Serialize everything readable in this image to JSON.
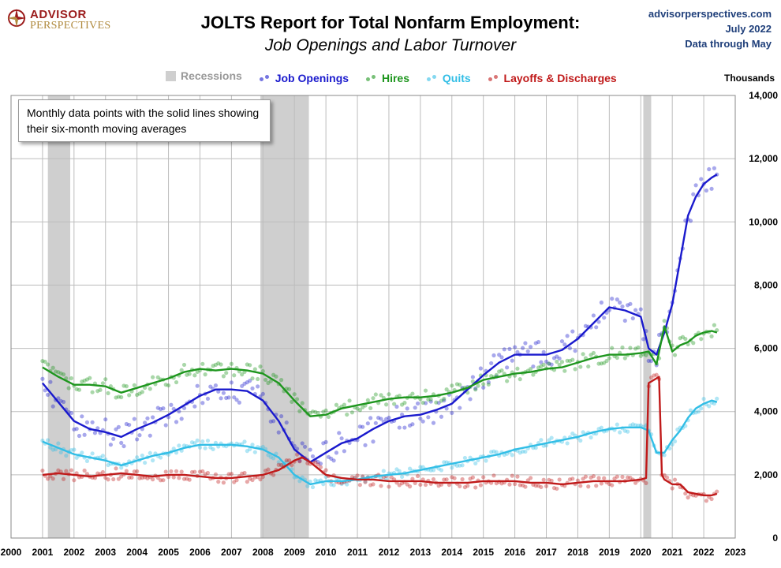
{
  "branding": {
    "logo_line1": "ADVISOR",
    "logo_line2": "PERSPECTIVES",
    "logo_color": "#9b1b1b",
    "website": "advisorperspectives.com",
    "date": "July 2022",
    "data_through": "Data through May"
  },
  "chart_data": {
    "type": "line",
    "title": "JOLTS Report for Total Nonfarm Employment:",
    "subtitle": "Job Openings and Labor Turnover",
    "ylabel": "Thousands",
    "annotation": "Monthly data points with the solid lines showing their six-month moving averages",
    "xlim": [
      2000,
      2023
    ],
    "ylim": [
      0,
      14000
    ],
    "x_ticks": [
      "2000",
      "2001",
      "2002",
      "2003",
      "2004",
      "2005",
      "2006",
      "2007",
      "2008",
      "2009",
      "2010",
      "2011",
      "2012",
      "2013",
      "2014",
      "2015",
      "2016",
      "2017",
      "2018",
      "2019",
      "2020",
      "2021",
      "2022",
      "2023"
    ],
    "y_ticks": [
      "0",
      "2,000",
      "4,000",
      "6,000",
      "8,000",
      "10,000",
      "12,000",
      "14,000"
    ],
    "grid": true,
    "legend_position": "top",
    "recessions": {
      "name": "Recessions",
      "color": "#cfcfcf",
      "periods": [
        [
          2001.17,
          2001.88
        ],
        [
          2007.92,
          2009.46
        ],
        [
          2020.08,
          2020.33
        ]
      ]
    },
    "series": [
      {
        "name": "Job Openings",
        "color": "#1a1acd",
        "x": [
          2001.0,
          2001.5,
          2002.0,
          2002.5,
          2003.0,
          2003.5,
          2004.0,
          2004.5,
          2005.0,
          2005.5,
          2006.0,
          2006.5,
          2007.0,
          2007.5,
          2008.0,
          2008.5,
          2009.0,
          2009.5,
          2010.0,
          2010.5,
          2011.0,
          2011.5,
          2012.0,
          2012.5,
          2013.0,
          2013.5,
          2014.0,
          2014.5,
          2015.0,
          2015.5,
          2016.0,
          2016.5,
          2017.0,
          2017.5,
          2018.0,
          2018.5,
          2019.0,
          2019.5,
          2020.0,
          2020.25,
          2020.5,
          2020.75,
          2021.0,
          2021.25,
          2021.5,
          2021.75,
          2022.0,
          2022.25,
          2022.42
        ],
        "values": [
          4900,
          4300,
          3700,
          3450,
          3350,
          3200,
          3450,
          3650,
          3900,
          4200,
          4500,
          4700,
          4700,
          4650,
          4350,
          3700,
          2800,
          2400,
          2700,
          3000,
          3150,
          3450,
          3700,
          3850,
          3900,
          4050,
          4250,
          4700,
          5150,
          5550,
          5800,
          5800,
          5800,
          5950,
          6300,
          6800,
          7300,
          7200,
          7000,
          6000,
          5800,
          6500,
          7400,
          8800,
          10200,
          10800,
          11200,
          11400,
          11500
        ]
      },
      {
        "name": "Hires",
        "color": "#1e961e",
        "x": [
          2001.0,
          2001.5,
          2002.0,
          2002.5,
          2003.0,
          2003.5,
          2004.0,
          2004.5,
          2005.0,
          2005.5,
          2006.0,
          2006.5,
          2007.0,
          2007.5,
          2008.0,
          2008.5,
          2009.0,
          2009.5,
          2010.0,
          2010.5,
          2011.0,
          2011.5,
          2012.0,
          2012.5,
          2013.0,
          2013.5,
          2014.0,
          2014.5,
          2015.0,
          2015.5,
          2016.0,
          2016.5,
          2017.0,
          2017.5,
          2018.0,
          2018.5,
          2019.0,
          2019.5,
          2020.0,
          2020.25,
          2020.5,
          2020.75,
          2021.0,
          2021.25,
          2021.5,
          2021.75,
          2022.0,
          2022.25,
          2022.42
        ],
        "values": [
          5400,
          5100,
          4850,
          4850,
          4800,
          4600,
          4750,
          4900,
          5050,
          5250,
          5350,
          5300,
          5350,
          5300,
          5200,
          4900,
          4350,
          3850,
          3900,
          4100,
          4200,
          4300,
          4400,
          4450,
          4450,
          4500,
          4600,
          4750,
          5000,
          5100,
          5200,
          5250,
          5350,
          5400,
          5550,
          5700,
          5800,
          5800,
          5850,
          5900,
          5500,
          6700,
          5900,
          6100,
          6200,
          6400,
          6500,
          6550,
          6500
        ]
      },
      {
        "name": "Quits",
        "color": "#32bee6",
        "x": [
          2001.0,
          2001.5,
          2002.0,
          2002.5,
          2003.0,
          2003.5,
          2004.0,
          2004.5,
          2005.0,
          2005.5,
          2006.0,
          2006.5,
          2007.0,
          2007.5,
          2008.0,
          2008.5,
          2009.0,
          2009.5,
          2010.0,
          2010.5,
          2011.0,
          2011.5,
          2012.0,
          2012.5,
          2013.0,
          2013.5,
          2014.0,
          2014.5,
          2015.0,
          2015.5,
          2016.0,
          2016.5,
          2017.0,
          2017.5,
          2018.0,
          2018.5,
          2019.0,
          2019.5,
          2020.0,
          2020.25,
          2020.5,
          2020.75,
          2021.0,
          2021.25,
          2021.5,
          2021.75,
          2022.0,
          2022.25,
          2022.42
        ],
        "values": [
          3050,
          2850,
          2650,
          2550,
          2450,
          2300,
          2450,
          2600,
          2700,
          2850,
          2950,
          2950,
          2950,
          2900,
          2800,
          2550,
          2000,
          1700,
          1800,
          1800,
          1850,
          1950,
          2000,
          2050,
          2150,
          2250,
          2350,
          2450,
          2550,
          2650,
          2800,
          2900,
          3000,
          3100,
          3200,
          3350,
          3450,
          3500,
          3500,
          3400,
          2700,
          2700,
          3100,
          3400,
          3800,
          4100,
          4250,
          4350,
          4300
        ]
      },
      {
        "name": "Layoffs & Discharges",
        "color": "#c01a1a",
        "x": [
          2001.0,
          2001.5,
          2002.0,
          2002.5,
          2003.0,
          2003.5,
          2004.0,
          2004.5,
          2005.0,
          2005.5,
          2006.0,
          2006.5,
          2007.0,
          2007.5,
          2008.0,
          2008.5,
          2009.0,
          2009.25,
          2009.5,
          2010.0,
          2010.5,
          2011.0,
          2011.5,
          2012.0,
          2012.5,
          2013.0,
          2013.5,
          2014.0,
          2014.5,
          2015.0,
          2015.5,
          2016.0,
          2016.5,
          2017.0,
          2017.5,
          2018.0,
          2018.5,
          2019.0,
          2019.5,
          2020.0,
          2020.17,
          2020.25,
          2020.58,
          2020.67,
          2020.75,
          2021.0,
          2021.25,
          2021.5,
          2021.75,
          2022.0,
          2022.25,
          2022.42
        ],
        "values": [
          2000,
          2050,
          2000,
          1950,
          2000,
          2050,
          2000,
          1950,
          2000,
          2000,
          1950,
          1900,
          1900,
          1950,
          2000,
          2150,
          2450,
          2550,
          2400,
          2000,
          1900,
          1850,
          1850,
          1800,
          1800,
          1800,
          1750,
          1750,
          1750,
          1800,
          1800,
          1800,
          1750,
          1750,
          1700,
          1750,
          1800,
          1800,
          1800,
          1850,
          1900,
          4900,
          5100,
          2000,
          1850,
          1700,
          1700,
          1450,
          1400,
          1350,
          1350,
          1400
        ]
      }
    ]
  }
}
